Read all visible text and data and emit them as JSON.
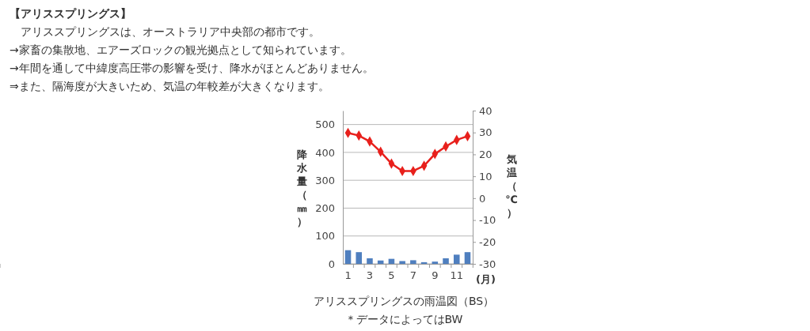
{
  "chart_data": {
    "type": "bar",
    "title": "【アリススプリングス】",
    "annotations": [
      "　アリススプリングスは、オーストラリア中央部の都市です。",
      "→家畜の集散地、エアーズロックの観光拠点として知られています。",
      "→年間を通して中緯度高圧帯の影響を受け、降水がほとんどありません。",
      "⇒また、隔海度が大きいため、気温の年較差が大きくなります。",
      "アリススプリングスの雨温図（BS）",
      "＊データによってはBW"
    ],
    "categories": [
      "1",
      null,
      "3",
      null,
      "5",
      null,
      "7",
      null,
      "9",
      null,
      "11",
      null
    ],
    "xlabel": "(月)",
    "ylabel": "降水量（㎜）",
    "y2label": "気温（℃）",
    "series": [
      {
        "color": "#4f7fbf",
        "values": [
          49,
          42,
          20,
          12,
          18,
          10,
          13,
          6,
          8,
          20,
          33,
          42
        ]
      },
      {
        "type": "line",
        "axis": "y2",
        "color": "#e8201c",
        "marker": "diamond",
        "values": [
          29.8,
          28.6,
          25.9,
          21.2,
          15.8,
          12.4,
          12.4,
          14.8,
          20.2,
          23.6,
          26.6,
          28.3
        ]
      }
    ],
    "ylim": [
      0,
      550
    ],
    "yticks": [
      0,
      100,
      200,
      300,
      400,
      500
    ],
    "y2lim": [
      -30,
      40
    ],
    "y2ticks": [
      -30,
      -20,
      -10,
      0,
      10,
      20,
      30,
      40
    ],
    "grid": "y"
  }
}
